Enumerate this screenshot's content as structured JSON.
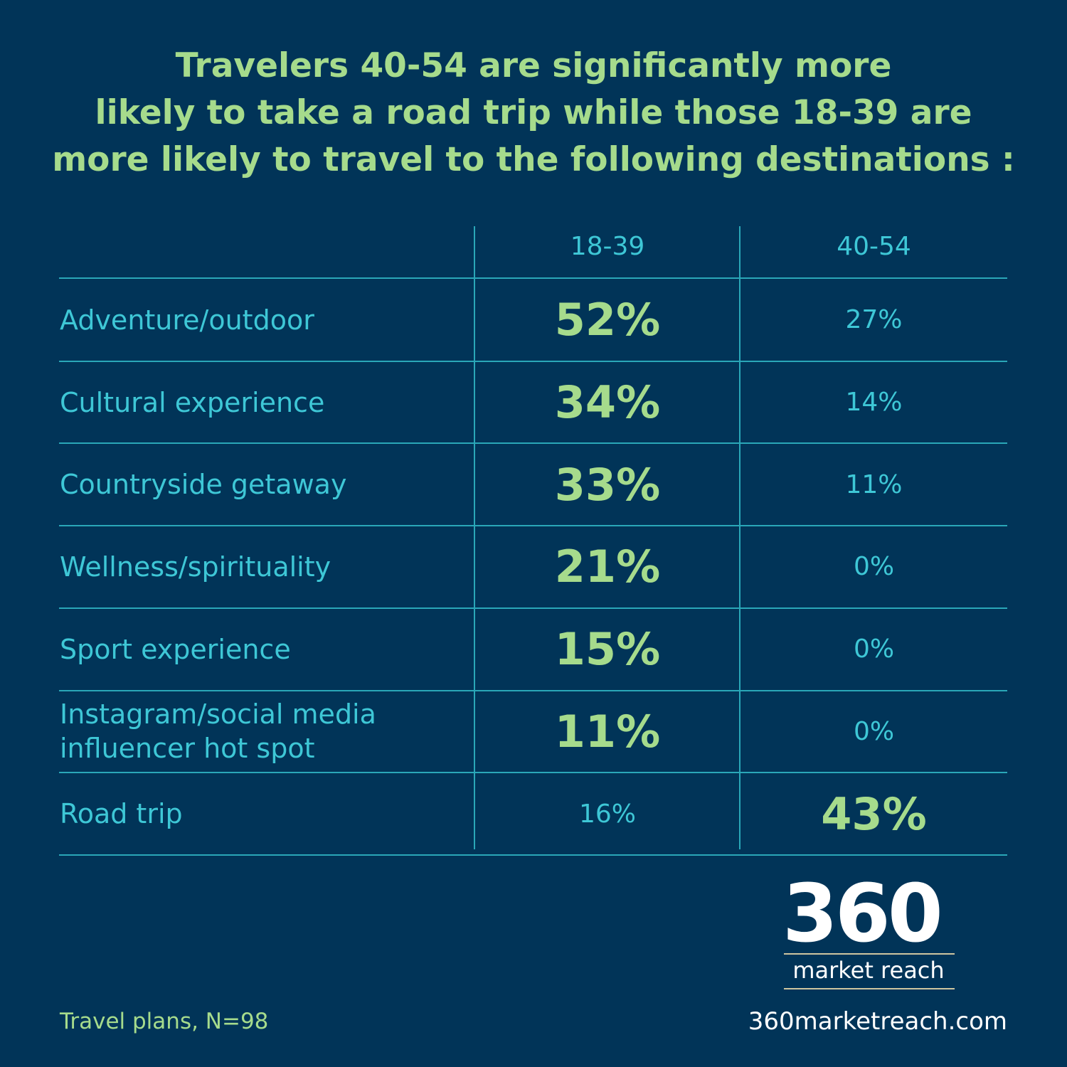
{
  "header": {
    "title_lines": [
      "Travelers 40-54 are significantly more",
      "likely to take a road trip while those 18-39 are",
      "more likely to travel to the following destinations :"
    ]
  },
  "table": {
    "columns": [
      "18-39",
      "40-54"
    ],
    "rows": [
      {
        "label": "Adventure/outdoor",
        "cells": [
          "52%",
          "27%"
        ]
      },
      {
        "label": "Cultural experience",
        "cells": [
          "34%",
          "14%"
        ]
      },
      {
        "label": "Countryside getaway",
        "cells": [
          "33%",
          "11%"
        ]
      },
      {
        "label": "Wellness/spirituality",
        "cells": [
          "21%",
          "0%"
        ]
      },
      {
        "label": "Sport experience",
        "cells": [
          "15%",
          "0%"
        ]
      },
      {
        "label": "Instagram/social media influencer hot spot",
        "cells": [
          "11%",
          "0%"
        ]
      },
      {
        "label": "Road trip",
        "cells": [
          "16%",
          "43%"
        ]
      }
    ]
  },
  "logo": {
    "name": "360",
    "tagline": "market reach"
  },
  "footer": {
    "note": "Travel plans, N=98",
    "website": "360marketreach.com"
  }
}
